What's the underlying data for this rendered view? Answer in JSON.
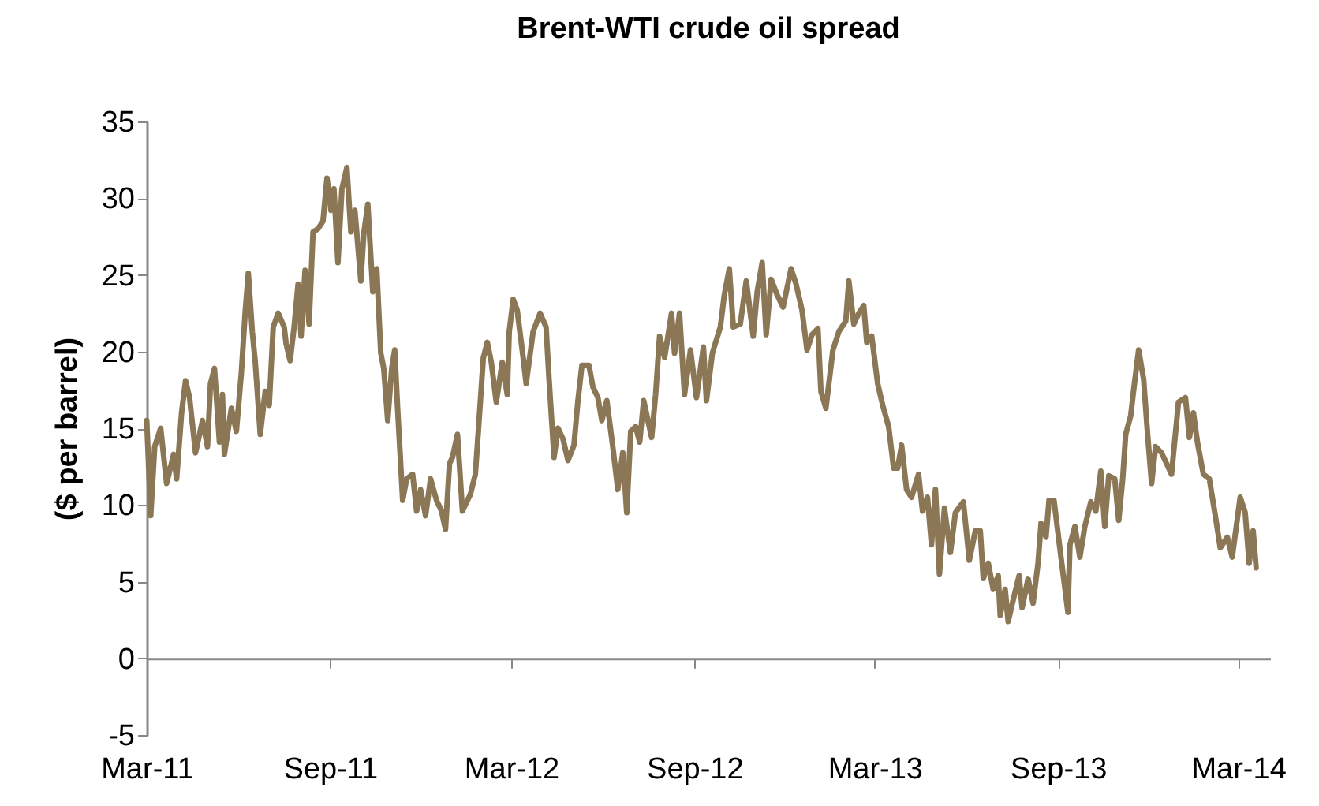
{
  "chart_data": {
    "type": "line",
    "title": "Brent-WTI crude oil spread",
    "ylabel": "($ per barrel)",
    "x": [
      "2011-03-01",
      "2011-03-05",
      "2011-03-09",
      "2011-03-15",
      "2011-03-21",
      "2011-03-28",
      "2011-03-31",
      "2011-04-05",
      "2011-04-09",
      "2011-04-13",
      "2011-04-19",
      "2011-04-26",
      "2011-05-01",
      "2011-05-04",
      "2011-05-08",
      "2011-05-13",
      "2011-05-16",
      "2011-05-18",
      "2011-05-25",
      "2011-05-30",
      "2011-06-04",
      "2011-06-08",
      "2011-06-11",
      "2011-06-15",
      "2011-06-18",
      "2011-06-23",
      "2011-06-28",
      "2011-07-02",
      "2011-07-06",
      "2011-07-11",
      "2011-07-17",
      "2011-07-19",
      "2011-07-23",
      "2011-07-27",
      "2011-07-31",
      "2011-08-03",
      "2011-08-07",
      "2011-08-11",
      "2011-08-15",
      "2011-08-20",
      "2011-08-25",
      "2011-08-29",
      "2011-09-02",
      "2011-09-05",
      "2011-09-09",
      "2011-09-13",
      "2011-09-18",
      "2011-09-22",
      "2011-09-26",
      "2011-10-02",
      "2011-10-05",
      "2011-10-09",
      "2011-10-14",
      "2011-10-18",
      "2011-10-22",
      "2011-10-25",
      "2011-10-29",
      "2011-11-02",
      "2011-11-05",
      "2011-11-08",
      "2011-11-13",
      "2011-11-17",
      "2011-11-23",
      "2011-11-27",
      "2011-12-01",
      "2011-12-06",
      "2011-12-11",
      "2011-12-17",
      "2011-12-22",
      "2011-12-26",
      "2011-12-30",
      "2012-01-02",
      "2012-01-07",
      "2012-01-12",
      "2012-01-20",
      "2012-01-25",
      "2012-01-29",
      "2012-02-02",
      "2012-02-06",
      "2012-02-10",
      "2012-02-15",
      "2012-02-21",
      "2012-02-26",
      "2012-02-28",
      "2012-03-03",
      "2012-03-07",
      "2012-03-13",
      "2012-03-16",
      "2012-03-23",
      "2012-03-30",
      "2012-04-05",
      "2012-04-08",
      "2012-04-13",
      "2012-04-17",
      "2012-04-22",
      "2012-04-27",
      "2012-05-03",
      "2012-05-07",
      "2012-05-11",
      "2012-05-18",
      "2012-05-22",
      "2012-05-27",
      "2012-05-31",
      "2012-06-05",
      "2012-06-11",
      "2012-06-16",
      "2012-06-21",
      "2012-06-25",
      "2012-06-29",
      "2012-07-04",
      "2012-07-08",
      "2012-07-12",
      "2012-07-20",
      "2012-07-24",
      "2012-07-28",
      "2012-08-02",
      "2012-08-09",
      "2012-08-12",
      "2012-08-17",
      "2012-08-22",
      "2012-08-28",
      "2012-09-03",
      "2012-09-10",
      "2012-09-13",
      "2012-09-19",
      "2012-09-27",
      "2012-10-01",
      "2012-10-06",
      "2012-10-10",
      "2012-10-17",
      "2012-10-23",
      "2012-10-30",
      "2012-11-03",
      "2012-11-08",
      "2012-11-12",
      "2012-11-17",
      "2012-11-23",
      "2012-11-29",
      "2012-12-07",
      "2012-12-12",
      "2012-12-18",
      "2012-12-23",
      "2012-12-28",
      "2013-01-03",
      "2013-01-06",
      "2013-01-11",
      "2013-01-18",
      "2013-01-24",
      "2013-01-31",
      "2013-02-03",
      "2013-02-08",
      "2013-02-13",
      "2013-02-18",
      "2013-02-21",
      "2013-02-26",
      "2013-03-04",
      "2013-03-09",
      "2013-03-15",
      "2013-03-20",
      "2013-03-24",
      "2013-03-28",
      "2013-04-02",
      "2013-04-07",
      "2013-04-14",
      "2013-04-18",
      "2013-04-23",
      "2013-04-27",
      "2013-05-01",
      "2013-05-05",
      "2013-05-10",
      "2013-05-16",
      "2013-05-21",
      "2013-05-29",
      "2013-06-04",
      "2013-06-10",
      "2013-06-15",
      "2013-06-18",
      "2013-06-23",
      "2013-06-28",
      "2013-07-03",
      "2013-07-05",
      "2013-07-10",
      "2013-07-13",
      "2013-07-18",
      "2013-07-24",
      "2013-07-27",
      "2013-08-02",
      "2013-08-07",
      "2013-08-12",
      "2013-08-15",
      "2013-08-20",
      "2013-08-23",
      "2013-08-28",
      "2013-09-04",
      "2013-09-11",
      "2013-09-13",
      "2013-09-18",
      "2013-09-23",
      "2013-09-28",
      "2013-10-04",
      "2013-10-09",
      "2013-10-14",
      "2013-10-18",
      "2013-10-22",
      "2013-10-28",
      "2013-11-01",
      "2013-11-05",
      "2013-11-08",
      "2013-11-13",
      "2013-11-16",
      "2013-11-21",
      "2013-11-26",
      "2013-11-30",
      "2013-12-04",
      "2013-12-08",
      "2013-12-14",
      "2013-12-24",
      "2013-12-31",
      "2014-01-07",
      "2014-01-11",
      "2014-01-15",
      "2014-01-19",
      "2014-01-25",
      "2014-01-31",
      "2014-02-06",
      "2014-02-11",
      "2014-02-18",
      "2014-02-23",
      "2014-03-03",
      "2014-03-08",
      "2014-03-12",
      "2014-03-16",
      "2014-03-19"
    ],
    "series": [
      {
        "color": "#8b7755",
        "values": [
          15.5,
          9.3,
          13.8,
          15.0,
          11.4,
          13.3,
          11.7,
          16.0,
          18.1,
          17.0,
          13.4,
          15.5,
          13.8,
          17.9,
          18.9,
          14.1,
          17.2,
          13.3,
          16.3,
          14.8,
          18.6,
          22.7,
          25.1,
          21.3,
          19.3,
          14.6,
          17.4,
          16.5,
          21.6,
          22.5,
          21.6,
          20.5,
          19.4,
          21.6,
          24.4,
          21.0,
          25.3,
          21.8,
          27.8,
          28.0,
          28.5,
          31.3,
          29.2,
          30.6,
          25.8,
          30.6,
          32.0,
          27.8,
          29.2,
          24.6,
          27.7,
          29.6,
          23.9,
          25.4,
          19.9,
          18.9,
          15.5,
          18.9,
          20.1,
          16.2,
          10.3,
          11.7,
          12.0,
          9.6,
          11.0,
          9.3,
          11.7,
          10.3,
          9.6,
          8.4,
          12.7,
          13.1,
          14.6,
          9.6,
          10.7,
          12.0,
          15.8,
          19.6,
          20.6,
          19.3,
          16.7,
          19.3,
          17.2,
          21.3,
          23.4,
          22.7,
          19.6,
          17.9,
          21.3,
          22.5,
          21.6,
          18.2,
          13.1,
          15.0,
          14.3,
          12.9,
          13.9,
          16.8,
          19.1,
          19.1,
          17.7,
          17.0,
          15.5,
          16.8,
          13.8,
          11.0,
          13.4,
          9.5,
          14.8,
          15.1,
          14.1,
          16.8,
          14.4,
          17.2,
          21.0,
          19.6,
          22.5,
          19.9,
          22.5,
          17.2,
          20.1,
          17.0,
          20.3,
          16.8,
          19.9,
          21.6,
          23.7,
          25.4,
          21.6,
          21.8,
          24.6,
          21.0,
          23.9,
          25.8,
          21.1,
          24.7,
          23.7,
          22.9,
          25.4,
          24.4,
          22.7,
          20.1,
          21.1,
          21.5,
          17.4,
          16.3,
          20.1,
          21.3,
          22.0,
          24.6,
          21.8,
          22.5,
          23.0,
          20.6,
          21.0,
          17.9,
          16.5,
          15.1,
          12.4,
          12.4,
          13.9,
          11.0,
          10.5,
          12.0,
          9.6,
          10.5,
          7.4,
          11.0,
          5.5,
          9.8,
          6.9,
          9.5,
          10.2,
          6.4,
          8.3,
          8.3,
          5.2,
          6.2,
          4.5,
          5.4,
          2.8,
          4.5,
          2.4,
          3.8,
          5.4,
          3.3,
          5.2,
          3.6,
          6.2,
          8.8,
          7.9,
          10.3,
          10.3,
          6.6,
          3.0,
          7.4,
          8.6,
          6.6,
          8.6,
          10.2,
          9.6,
          12.2,
          8.6,
          11.9,
          11.7,
          9.0,
          11.7,
          14.6,
          15.8,
          17.5,
          20.1,
          18.2,
          14.6,
          11.4,
          13.8,
          13.4,
          12.0,
          16.7,
          17.0,
          14.4,
          16.0,
          14.1,
          12.0,
          11.7,
          9.3,
          7.2,
          7.9,
          6.6,
          10.5,
          9.5,
          6.2,
          8.3,
          5.9
        ]
      }
    ],
    "line_style": "solid",
    "xlim": [
      "2011-03-01",
      "2014-04-02"
    ],
    "xticks": [
      {
        "value": "2011-03-01",
        "label": "Mar-11"
      },
      {
        "value": "2011-09-01",
        "label": "Sep-11"
      },
      {
        "value": "2012-03-01",
        "label": "Mar-12"
      },
      {
        "value": "2012-09-01",
        "label": "Sep-12"
      },
      {
        "value": "2013-03-01",
        "label": "Mar-13"
      },
      {
        "value": "2013-09-01",
        "label": "Sep-13"
      },
      {
        "value": "2014-03-01",
        "label": "Mar-14"
      }
    ],
    "ylim": [
      -5,
      35
    ],
    "yticks": [
      -5,
      0,
      5,
      10,
      15,
      20,
      25,
      30,
      35
    ]
  }
}
